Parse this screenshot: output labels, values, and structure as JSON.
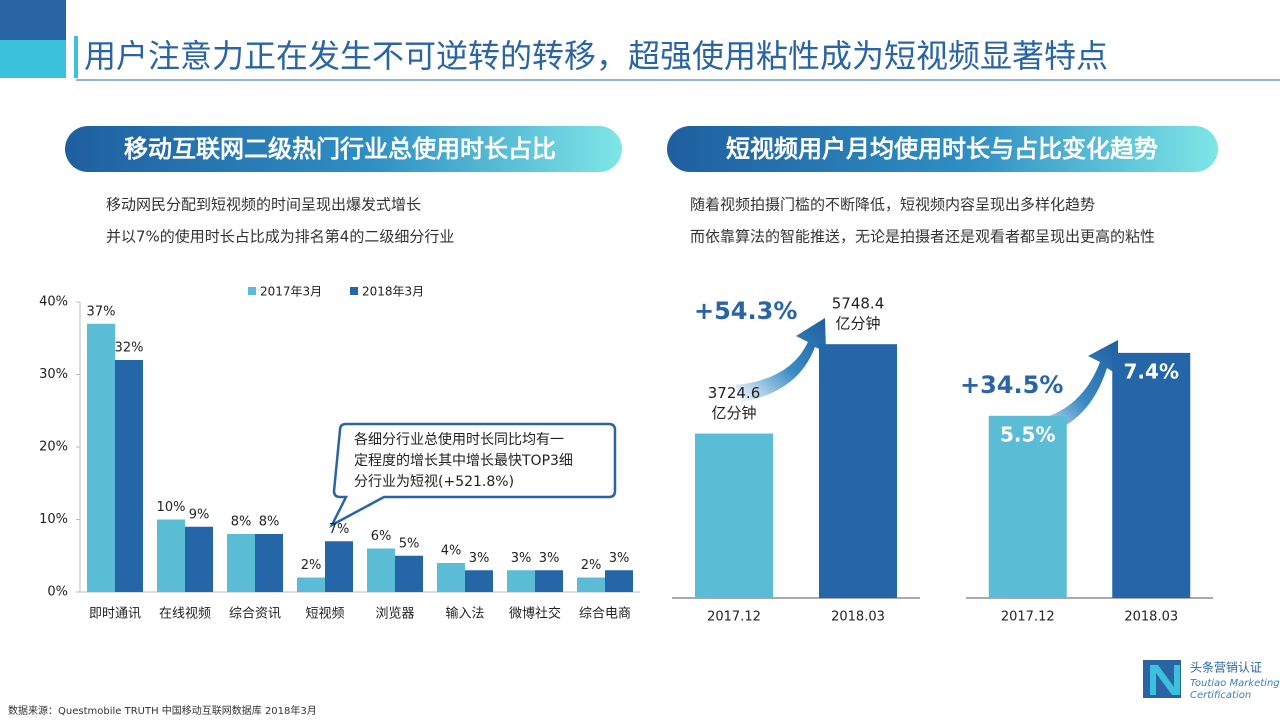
{
  "slide": {
    "title": "用户注意力正在发生不可逆转的转移，超强使用粘性成为短视频显著特点",
    "sections": [
      {
        "heading": "移动互联网二级热门行业总使用时长占比",
        "lines": [
          "移动网民分配到短视频的时间呈现出爆发式增长",
          "并以7%的使用时长占比成为排名第4的二级细分行业"
        ]
      },
      {
        "heading": "短视频用户月均使用时长与占比变化趋势",
        "lines": [
          "随着视频拍摄门槛的不断降低，短视频内容呈现出多样化趋势",
          "而依靠算法的智能推送，无论是拍摄者还是观看者都呈现出更高的粘性"
        ]
      }
    ],
    "source": "数据来源：Questmobile TRUTH 中国移动互联网数据库 2018年3月",
    "logo": {
      "name": "头条营销认证",
      "english": [
        "Toutiao Marketing",
        "Certification"
      ]
    }
  },
  "chart_data": [
    {
      "type": "bar",
      "categories": [
        "即时通讯",
        "在线视频",
        "综合资讯",
        "短视频",
        "浏览器",
        "输入法",
        "微博社交",
        "综合电商"
      ],
      "series": [
        {
          "name": "2017年3月",
          "color": "#5bbcd6",
          "values": [
            37,
            10,
            8,
            2,
            6,
            4,
            3,
            2
          ],
          "value_labels": [
            "37%",
            "10%",
            "8%",
            "2%",
            "6%",
            "4%",
            "3%",
            "2%"
          ]
        },
        {
          "name": "2018年3月",
          "color": "#2466a8",
          "values": [
            32,
            9,
            8,
            7,
            5,
            3,
            3,
            3
          ],
          "value_labels": [
            "32%",
            "9%",
            "8%",
            "7%",
            "5%",
            "3%",
            "3%",
            "3%"
          ]
        }
      ],
      "ylim": [
        0,
        40
      ],
      "yticks": [
        {
          "value": 0,
          "label": "0%"
        },
        {
          "value": 10,
          "label": "10%"
        },
        {
          "value": 20,
          "label": "20%"
        },
        {
          "value": 30,
          "label": "30%"
        },
        {
          "value": 40,
          "label": "40%"
        }
      ],
      "legend": "top",
      "annotation": [
        "各细分行业总使用时长同比均有一",
        "定程度的增长其中增长最快TOP3细",
        "分行业为短视(+521.8%)"
      ]
    },
    {
      "type": "bar",
      "categories": [
        "2017.12",
        "2018.03"
      ],
      "values": [
        3724.6,
        5748.4
      ],
      "unit": "亿分钟",
      "colors": [
        "#5bbcd6",
        "#2466a8"
      ],
      "ylim": [
        0,
        6500
      ],
      "annotation": "+54.3%"
    },
    {
      "type": "bar",
      "categories": [
        "2017.12",
        "2018.03"
      ],
      "values": [
        5.5,
        7.4
      ],
      "value_labels": [
        "5.5%",
        "7.4%"
      ],
      "colors": [
        "#5bbcd6",
        "#2466a8"
      ],
      "ylim": [
        0,
        8
      ],
      "annotation": "+34.5%"
    }
  ]
}
